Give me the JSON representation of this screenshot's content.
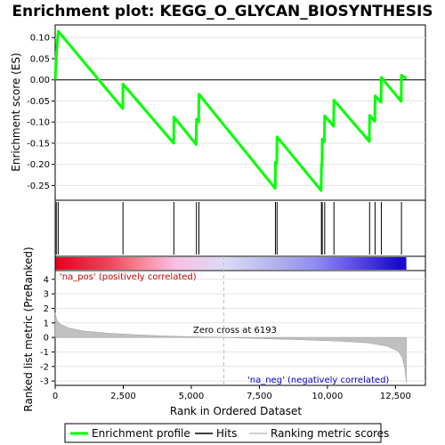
{
  "chart_data": {
    "type": "line",
    "title": "Enrichment plot: KEGG_O_GLYCAN_BIOSYNTHESIS",
    "es_panel": {
      "ylabel": "Enrichment score (ES)",
      "ylim": [
        -0.285,
        0.13
      ],
      "yticks": [
        0.1,
        0.05,
        0.0,
        -0.05,
        -0.1,
        -0.15,
        -0.2,
        -0.25
      ],
      "ytick_labels": [
        "0.10",
        "0.05",
        "0.00",
        "-0.05",
        "-0.10",
        "-0.15",
        "-0.20",
        "-0.25"
      ],
      "line_color": "#00ff00",
      "profile": [
        [
          0,
          0.0
        ],
        [
          40,
          0.055
        ],
        [
          110,
          0.115
        ],
        [
          2480,
          -0.068
        ],
        [
          2490,
          -0.01
        ],
        [
          4350,
          -0.15
        ],
        [
          4360,
          -0.088
        ],
        [
          5180,
          -0.153
        ],
        [
          5190,
          -0.093
        ],
        [
          5270,
          -0.1
        ],
        [
          5280,
          -0.034
        ],
        [
          8080,
          -0.257
        ],
        [
          8090,
          -0.195
        ],
        [
          8140,
          -0.198
        ],
        [
          8150,
          -0.135
        ],
        [
          9770,
          -0.262
        ],
        [
          9780,
          -0.2
        ],
        [
          9800,
          -0.202
        ],
        [
          9810,
          -0.14
        ],
        [
          9890,
          -0.146
        ],
        [
          9900,
          -0.085
        ],
        [
          10230,
          -0.11
        ],
        [
          10240,
          -0.048
        ],
        [
          11540,
          -0.146
        ],
        [
          11550,
          -0.084
        ],
        [
          11740,
          -0.098
        ],
        [
          11750,
          -0.038
        ],
        [
          11970,
          -0.053
        ],
        [
          11980,
          0.006
        ],
        [
          12710,
          -0.051
        ],
        [
          12720,
          0.011
        ],
        [
          12900,
          0.003
        ]
      ]
    },
    "hits": [
      40,
      110,
      2490,
      4360,
      5190,
      5280,
      8090,
      8150,
      9780,
      9810,
      9900,
      10240,
      11550,
      11750,
      11980,
      12720
    ],
    "heatmap": {
      "n": 12900,
      "stops": [
        {
          "pos": 0,
          "color": "#e8001e"
        },
        {
          "pos": 1950,
          "color": "#f0425a"
        },
        {
          "pos": 2950,
          "color": "#f77d8c"
        },
        {
          "pos": 4400,
          "color": "#fbbde4"
        },
        {
          "pos": 6200,
          "color": "#dcdcf6"
        },
        {
          "pos": 7900,
          "color": "#b6b6ee"
        },
        {
          "pos": 9500,
          "color": "#8f8ff0"
        },
        {
          "pos": 10550,
          "color": "#6d5ef0"
        },
        {
          "pos": 12600,
          "color": "#1a0ad0"
        }
      ]
    },
    "metric_panel": {
      "ylabel": "Ranked list metric (PreRanked)",
      "ylim": [
        -3.3,
        4.6
      ],
      "yticks": [
        4,
        3,
        2,
        1,
        0,
        -1,
        -2,
        -3
      ],
      "ytick_labels": [
        "4",
        "3",
        "2",
        "1",
        "0",
        "-1",
        "-2",
        "-3"
      ],
      "curve": [
        [
          0,
          1.7
        ],
        [
          60,
          1.2
        ],
        [
          200,
          0.9
        ],
        [
          500,
          0.65
        ],
        [
          1000,
          0.45
        ],
        [
          2000,
          0.28
        ],
        [
          3000,
          0.18
        ],
        [
          4000,
          0.1
        ],
        [
          5000,
          0.05
        ],
        [
          6193,
          0.0
        ],
        [
          7500,
          -0.08
        ],
        [
          9000,
          -0.16
        ],
        [
          10500,
          -0.26
        ],
        [
          11500,
          -0.38
        ],
        [
          12200,
          -0.6
        ],
        [
          12600,
          -0.95
        ],
        [
          12750,
          -1.4
        ],
        [
          12850,
          -2.2
        ],
        [
          12900,
          -3.1
        ]
      ],
      "fill_color": "#c0c0c0",
      "zero_cross": 6193
    },
    "xlabel": "Rank in Ordered Dataset",
    "xlim": [
      0,
      13600
    ],
    "xticks": [
      0,
      2500,
      5000,
      7500,
      10000,
      12500
    ],
    "xtick_labels": [
      "0",
      "2,500",
      "5,000",
      "7,500",
      "10,000",
      "12,500"
    ],
    "annotations": {
      "pos_label": "'na_pos' (positively correlated)",
      "pos_color": "#cc0000",
      "neg_label": "'na_neg' (negatively correlated)",
      "neg_color": "#0000cc",
      "zero_cross_label": "Zero cross at 6193"
    },
    "legend": {
      "placement": "bottom",
      "items": [
        {
          "label": "Enrichment profile",
          "color": "#00ff00"
        },
        {
          "label": "Hits",
          "color": "#000000"
        },
        {
          "label": "Ranking metric scores",
          "color": "#c0c0c0"
        }
      ]
    }
  }
}
